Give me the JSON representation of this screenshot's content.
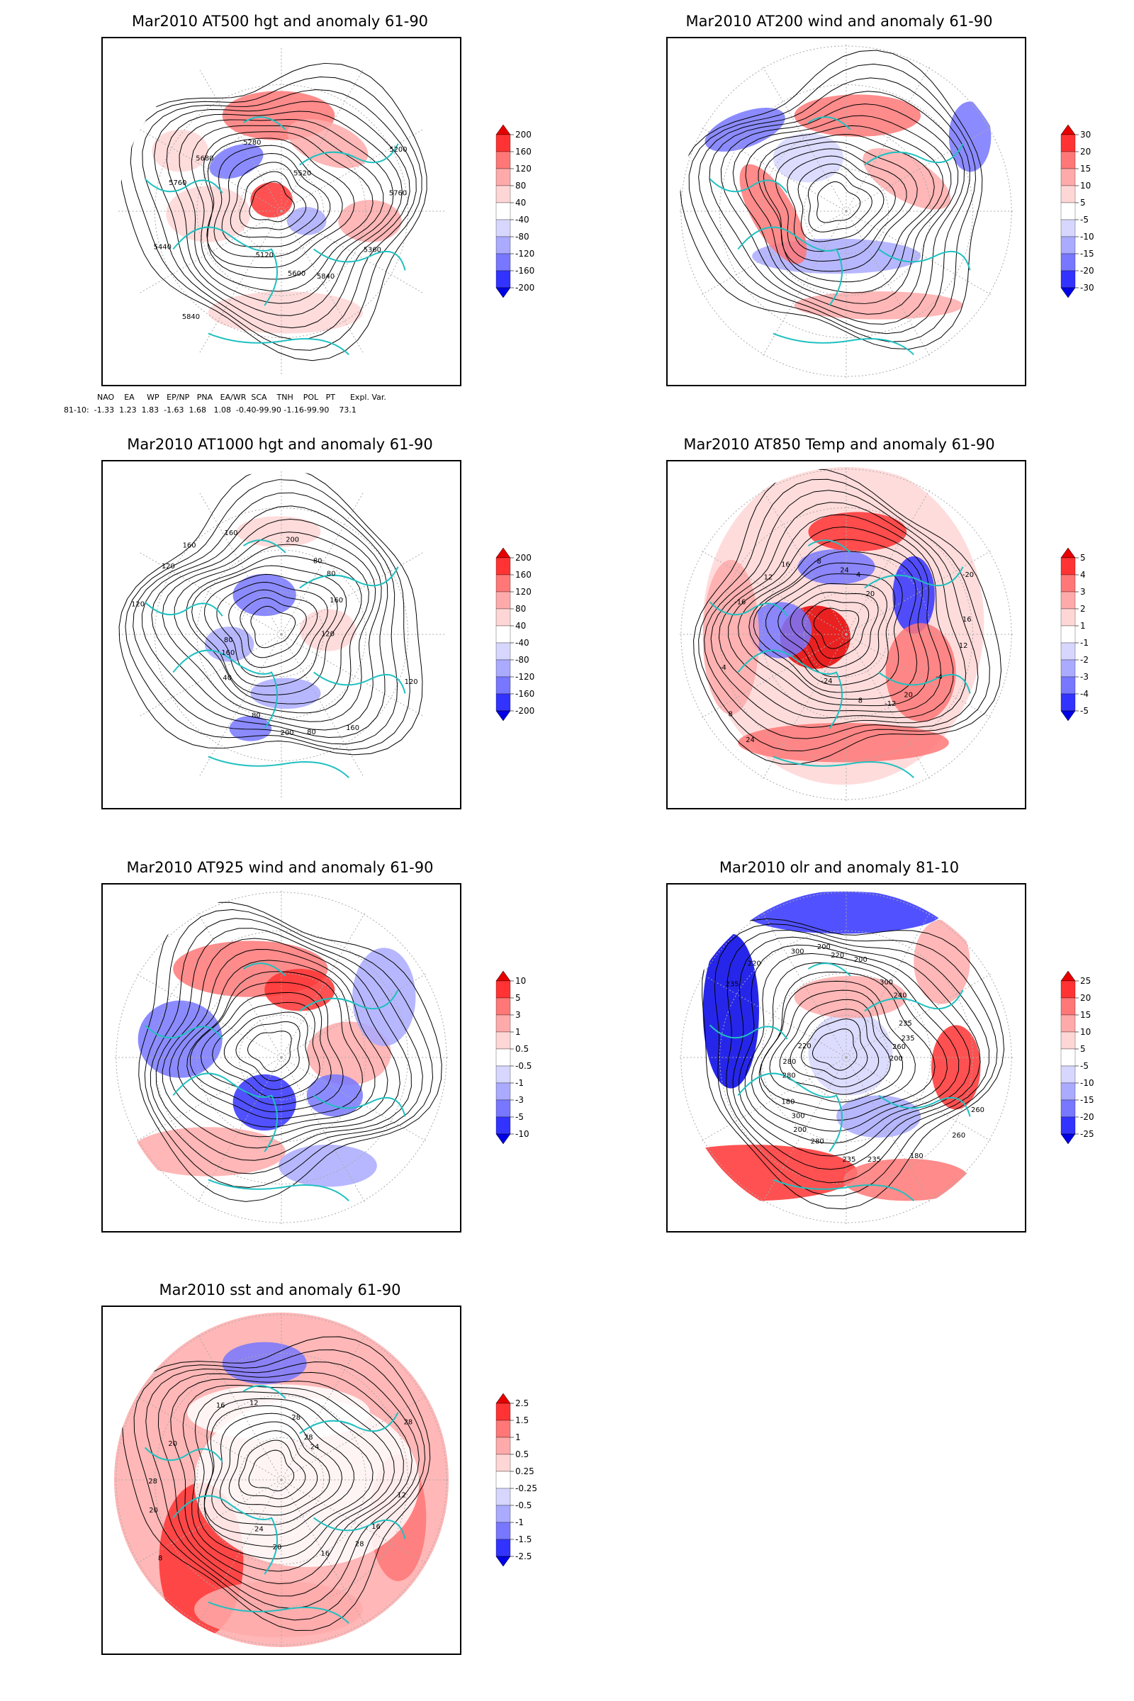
{
  "panels": [
    {
      "id": "p1",
      "title": "Mar2010 AT500 hgt and anomaly 61-90",
      "colorbar": [
        "200",
        "160",
        "120",
        "80",
        "40",
        "-40",
        "-80",
        "-120",
        "-160",
        "-200"
      ],
      "contour_labels": [
        "5840",
        "5760",
        "5200",
        "5120",
        "5280",
        "5360",
        "5440",
        "5520",
        "5600",
        "5680",
        "5760",
        "5840"
      ]
    },
    {
      "id": "p2",
      "title": "Mar2010 AT200 wind and anomaly 61-90",
      "colorbar": [
        "30",
        "20",
        "15",
        "10",
        "5",
        "-5",
        "-10",
        "-15",
        "-20",
        "-30"
      ]
    },
    {
      "id": "p3",
      "title": "Mar2010 AT1000 hgt and anomaly 61-90",
      "colorbar": [
        "200",
        "160",
        "120",
        "80",
        "40",
        "-40",
        "-80",
        "-120",
        "-160",
        "-200"
      ],
      "contour_labels": [
        "80",
        "80",
        "200",
        "160",
        "120",
        "40",
        "200",
        "160",
        "120",
        "160",
        "80",
        "160",
        "120",
        "160",
        "80",
        "80",
        "120"
      ]
    },
    {
      "id": "p4",
      "title": "Mar2010 AT850 Temp and anomaly 61-90",
      "colorbar": [
        "5",
        "4",
        "3",
        "2",
        "1",
        "-1",
        "-2",
        "-3",
        "-4",
        "-5"
      ],
      "contour_labels": [
        "16",
        "12",
        "8",
        "4",
        "-12",
        "-16",
        "-20",
        "-24",
        "-8",
        "-4",
        "-4",
        "20",
        "8",
        "12",
        "16",
        "24",
        "24",
        "20"
      ]
    },
    {
      "id": "p5",
      "title": "Mar2010 AT925 wind and anomaly 61-90",
      "colorbar": [
        "10",
        "5",
        "3",
        "1",
        "0.5",
        "-0.5",
        "-1",
        "-3",
        "-5",
        "-10"
      ]
    },
    {
      "id": "p6",
      "title": "Mar2010 olr and anomaly 81-10",
      "colorbar": [
        "25",
        "20",
        "15",
        "10",
        "5",
        "-5",
        "-10",
        "-15",
        "-20",
        "-25"
      ],
      "contour_labels": [
        "235",
        "200",
        "200",
        "260",
        "280",
        "240",
        "235",
        "220",
        "200",
        "180",
        "200",
        "180",
        "220",
        "235",
        "280",
        "300",
        "260",
        "280",
        "300",
        "235",
        "235",
        "260",
        "300",
        "220"
      ]
    },
    {
      "id": "p7",
      "title": "Mar2010 sst and anomaly 61-90",
      "colorbar": [
        "2.5",
        "1.5",
        "1",
        "0.5",
        "0.25",
        "-0.25",
        "-0.5",
        "-1",
        "-1.5",
        "-2.5"
      ],
      "contour_labels": [
        "28",
        "28",
        "24",
        "20",
        "16",
        "12",
        "8",
        "28",
        "16",
        "20",
        "28",
        "24",
        "12",
        "16",
        "20",
        "28"
      ]
    }
  ],
  "teleconnection": {
    "header": "    NAO    EA     WP   EP/NP   PNA   EA/WR  SCA    TNH    POL   PT      Expl. Var.",
    "row": "81-10:  -1.33  1.23  1.83  -1.63  1.68   1.08  -0.40-99.90 -1.16-99.90    73.1"
  },
  "colors": {
    "ramp": [
      "#e60000",
      "#ff3333",
      "#ff7777",
      "#ffaaaa",
      "#ffd6d6",
      "#ffffff",
      "#d6d6ff",
      "#aaaaff",
      "#7777ff",
      "#3333ff",
      "#0000e6"
    ],
    "coast": "#20c0c0",
    "contour": "#000000",
    "grid": "#aaaaaa"
  }
}
